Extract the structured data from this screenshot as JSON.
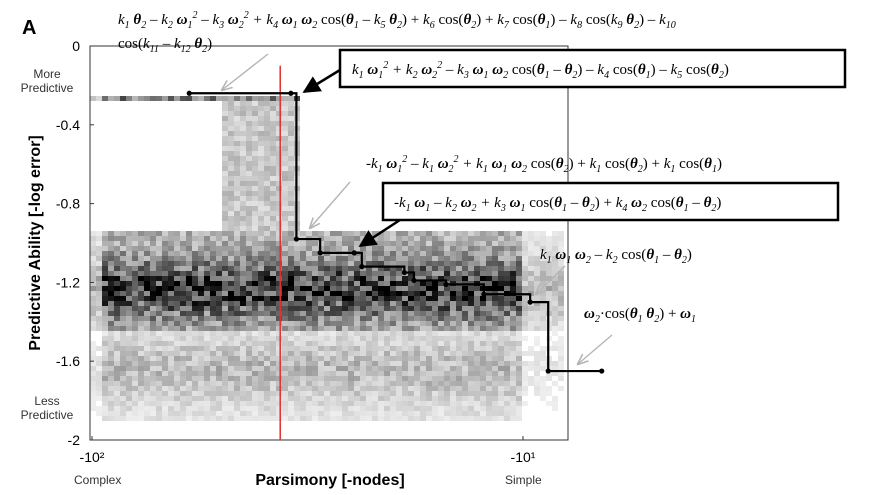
{
  "panel_label": "A",
  "chart_data": {
    "type": "heatmap",
    "title": "",
    "xlabel": "Parsimony [-nodes]",
    "ylabel": "Predictive Ability [-log error]",
    "xscale": "log",
    "xlim": [
      -100,
      -10
    ],
    "ylim": [
      -2,
      0
    ],
    "x_ticks": [
      "-10²",
      "-10¹"
    ],
    "y_ticks": [
      "0",
      "-0.4",
      "-0.8",
      "-1.2",
      "-1.6",
      "-2"
    ],
    "y_tick_values": [
      0,
      -0.4,
      -0.8,
      -1.2,
      -1.6,
      -2
    ],
    "x_end_labels": {
      "left": "Complex",
      "right": "Simple"
    },
    "y_end_labels": {
      "top": "More Predictive",
      "bottom": "Less Predictive"
    },
    "reference_line": {
      "x": -40,
      "color": "#e03030"
    },
    "pareto_front": {
      "color": "#000000",
      "points": [
        {
          "x": -62,
          "y": -0.24
        },
        {
          "x": -38,
          "y": -0.24
        },
        {
          "x": -37,
          "y": -0.98
        },
        {
          "x": -33,
          "y": -1.05
        },
        {
          "x": -28,
          "y": -1.05
        },
        {
          "x": -27,
          "y": -1.12
        },
        {
          "x": -22,
          "y": -1.15
        },
        {
          "x": -21,
          "y": -1.19
        },
        {
          "x": -18,
          "y": -1.21
        },
        {
          "x": -15,
          "y": -1.26
        },
        {
          "x": -12,
          "y": -1.3
        },
        {
          "x": -11,
          "y": -1.65
        },
        {
          "x": -8.5,
          "y": -1.65
        }
      ]
    },
    "annotations": [
      {
        "id": "eq1",
        "text": "k1 θ2 – k2 ω1² – k3 ω2² + k4 ω1 ω2 cos(θ1 – k5 θ2) + k6 cos(θ2) + k7 cos(θ1) – k8 cos(k9 θ2) – k10 cos(k11 – k12 θ2)",
        "boxed": false
      },
      {
        "id": "eq2",
        "text": "k1 ω1² + k2 ω2² – k3 ω1 ω2 cos(θ1 – θ2) – k4 cos(θ1) – k5 cos(θ2)",
        "boxed": true
      },
      {
        "id": "eq3",
        "text": "-k1 ω1² – k1 ω2² + k1 ω1 ω2 cos(θ2) + k1 cos(θ2) + k1 cos(θ1)",
        "boxed": false
      },
      {
        "id": "eq4",
        "text": "-k1 ω1 – k2 ω2 + k3 ω1 cos(θ1 – θ2) + k4 ω2 cos(θ1 – θ2)",
        "boxed": true
      },
      {
        "id": "eq5",
        "text": "k1 ω1 ω2 – k2 cos(θ1 – θ2)",
        "boxed": false
      },
      {
        "id": "eq6",
        "text": "ω2·cos(θ1 θ2) + ω1",
        "boxed": false
      }
    ]
  }
}
